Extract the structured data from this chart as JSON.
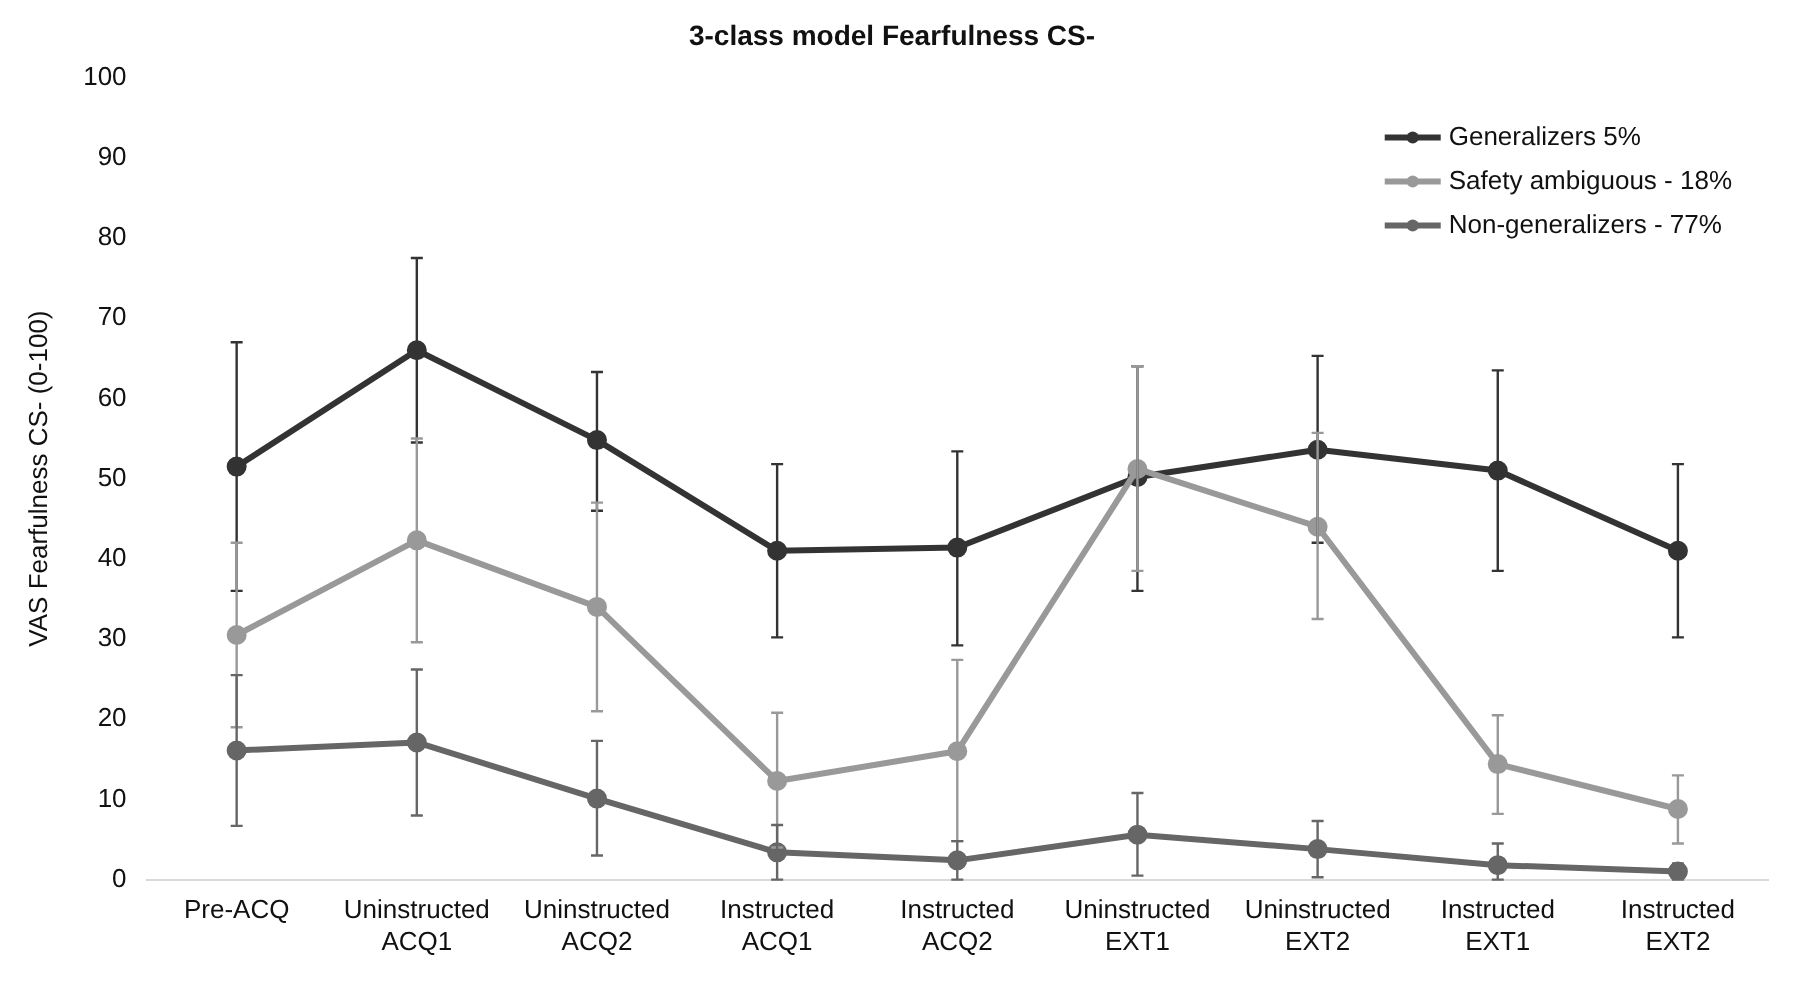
{
  "chart_data": {
    "type": "line",
    "title": "3-class model Fearfulness CS-",
    "ylabel": "VAS Fearfulness CS- (0-100)",
    "categories": [
      "Pre-ACQ",
      "Uninstructed ACQ1",
      "Uninstructed ACQ2",
      "Instructed ACQ1",
      "Instructed ACQ2",
      "Uninstructed EXT1",
      "Uninstructed EXT2",
      "Instructed EXT1",
      "Instructed EXT2"
    ],
    "series": [
      {
        "name": "Generalizers 5%",
        "color": "#333333",
        "values": [
          51.5,
          66,
          54.8,
          41,
          41.4,
          50.2,
          53.6,
          51,
          41
        ],
        "errors": [
          [
            36,
            67
          ],
          [
            54.5,
            77.5
          ],
          [
            46,
            63.3
          ],
          [
            30.2,
            51.8
          ],
          [
            29.2,
            53.4
          ],
          [
            36,
            64
          ],
          [
            42,
            65.3
          ],
          [
            38.5,
            63.5
          ],
          [
            30.2,
            51.8
          ]
        ]
      },
      {
        "name": "Safety ambiguous - 18%",
        "color": "#999999",
        "values": [
          30.5,
          42.3,
          34,
          12.3,
          16,
          51.2,
          44,
          14.4,
          8.8
        ],
        "errors": [
          [
            19,
            42
          ],
          [
            29.6,
            55
          ],
          [
            21,
            47
          ],
          [
            4,
            20.8
          ],
          [
            4.8,
            27.4
          ],
          [
            38.5,
            64
          ],
          [
            32.5,
            55.7
          ],
          [
            8.2,
            20.5
          ],
          [
            4.5,
            13
          ]
        ]
      },
      {
        "name": "Non-generalizers - 77%",
        "color": "#666666",
        "values": [
          16.1,
          17.1,
          10.1,
          3.4,
          2.4,
          5.6,
          3.8,
          1.8,
          1
        ],
        "errors": [
          [
            6.7,
            25.5
          ],
          [
            8,
            26.2
          ],
          [
            3,
            17.3
          ],
          [
            0,
            6.8
          ],
          [
            0,
            4.8
          ],
          [
            0.5,
            10.8
          ],
          [
            0.3,
            7.3
          ],
          [
            0,
            4.5
          ],
          [
            0,
            2
          ]
        ]
      }
    ],
    "ylim": [
      0,
      100
    ],
    "yticks": [
      0,
      10,
      20,
      30,
      40,
      50,
      60,
      70,
      80,
      90,
      100
    ],
    "grid": false,
    "legend": "top right",
    "marker": "circle",
    "line_style": "solid"
  }
}
